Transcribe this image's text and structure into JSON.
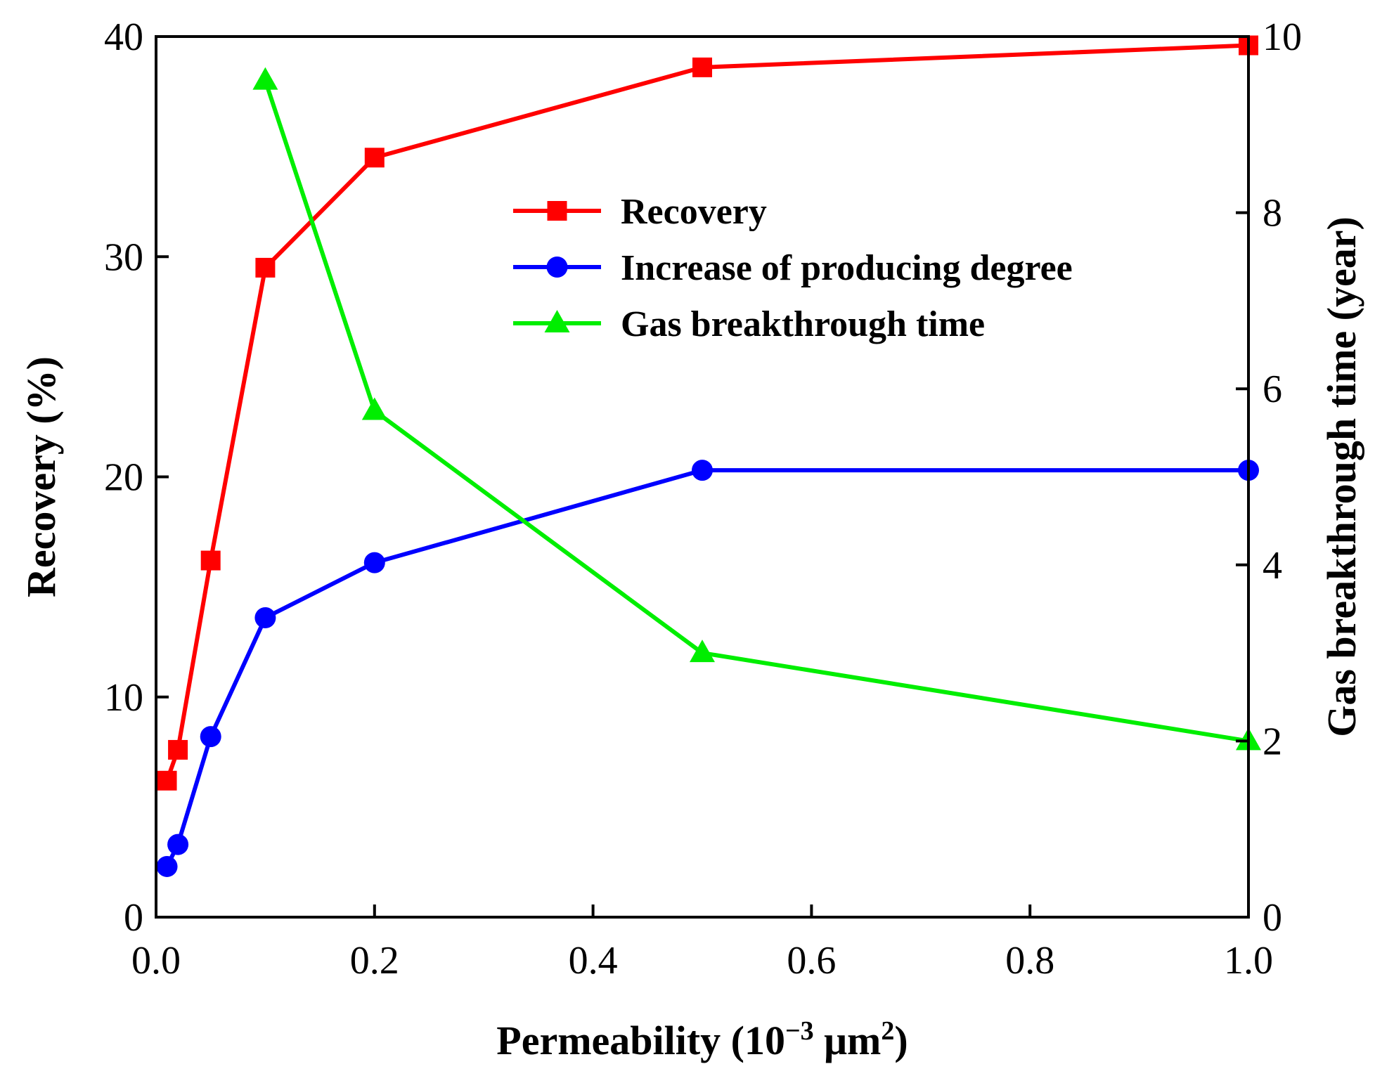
{
  "chart_data": {
    "type": "line",
    "x_axis": {
      "label_main": "Permeability (10",
      "label_sup": "−3",
      "label_unit": " μm",
      "label_unit_sup": "2",
      "label_close": ")",
      "lim": [
        0.0,
        1.0
      ],
      "ticks": [
        0.0,
        0.2,
        0.4,
        0.6,
        0.8,
        1.0
      ],
      "tick_labels": [
        "0.0",
        "0.2",
        "0.4",
        "0.6",
        "0.8",
        "1.0"
      ]
    },
    "y_left": {
      "label": "Recovery (%)",
      "lim": [
        0,
        40
      ],
      "ticks": [
        0,
        10,
        20,
        30,
        40
      ],
      "tick_labels": [
        "0",
        "10",
        "20",
        "30",
        "40"
      ]
    },
    "y_right": {
      "label": "Gas breakthrough time (year)",
      "lim": [
        0,
        10
      ],
      "ticks": [
        0,
        2,
        4,
        6,
        8,
        10
      ],
      "tick_labels": [
        "0",
        "2",
        "4",
        "6",
        "8",
        "10"
      ]
    },
    "series": [
      {
        "name": "Recovery",
        "axis": "left",
        "color": "#ff0000",
        "marker": "square",
        "x": [
          0.01,
          0.02,
          0.05,
          0.1,
          0.2,
          0.5,
          1.0
        ],
        "y": [
          6.2,
          7.6,
          16.2,
          29.5,
          34.5,
          38.6,
          39.6
        ]
      },
      {
        "name": "Increase of producing degree",
        "axis": "left",
        "color": "#0000ff",
        "marker": "circle",
        "x": [
          0.01,
          0.02,
          0.05,
          0.1,
          0.2,
          0.5,
          1.0
        ],
        "y": [
          2.3,
          3.3,
          8.2,
          13.6,
          16.1,
          20.3,
          20.3
        ]
      },
      {
        "name": "Gas breakthrough time",
        "axis": "right",
        "color": "#00ee00",
        "marker": "triangle",
        "x": [
          0.1,
          0.2,
          0.5,
          1.0
        ],
        "y": [
          9.5,
          5.75,
          3.0,
          2.0
        ]
      }
    ],
    "legend_position": "upper-center-right",
    "grid": false
  }
}
